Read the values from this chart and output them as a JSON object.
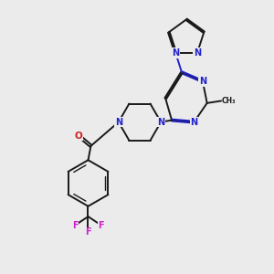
{
  "background_color": "#ebebeb",
  "bond_color": "#1a1a1a",
  "nitrogen_color": "#2222cc",
  "oxygen_color": "#cc2222",
  "fluorine_color": "#cc22cc",
  "figsize": [
    3.0,
    3.0
  ],
  "dpi": 100,
  "xlim": [
    0,
    10
  ],
  "ylim": [
    0,
    10
  ]
}
